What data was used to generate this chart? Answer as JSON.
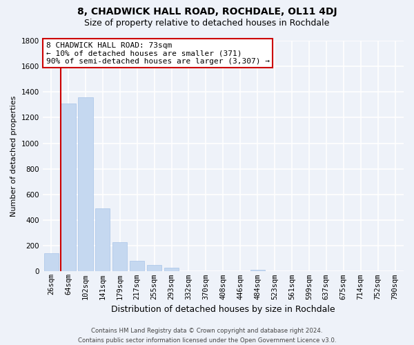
{
  "title": "8, CHADWICK HALL ROAD, ROCHDALE, OL11 4DJ",
  "subtitle": "Size of property relative to detached houses in Rochdale",
  "xlabel": "Distribution of detached houses by size in Rochdale",
  "ylabel": "Number of detached properties",
  "bar_labels": [
    "26sqm",
    "64sqm",
    "102sqm",
    "141sqm",
    "179sqm",
    "217sqm",
    "255sqm",
    "293sqm",
    "332sqm",
    "370sqm",
    "408sqm",
    "446sqm",
    "484sqm",
    "523sqm",
    "561sqm",
    "599sqm",
    "637sqm",
    "675sqm",
    "714sqm",
    "752sqm",
    "790sqm"
  ],
  "bar_values": [
    140,
    1310,
    1360,
    490,
    230,
    85,
    50,
    30,
    0,
    0,
    0,
    0,
    15,
    0,
    0,
    0,
    0,
    0,
    0,
    0,
    0
  ],
  "bar_color": "#c5d8f0",
  "bar_edge_color": "#a8c4e8",
  "vline_x_index": 1,
  "vline_color": "#cc0000",
  "annotation_line1": "8 CHADWICK HALL ROAD: 73sqm",
  "annotation_line2": "← 10% of detached houses are smaller (371)",
  "annotation_line3": "90% of semi-detached houses are larger (3,307) →",
  "annotation_box_color": "#ffffff",
  "annotation_box_edge": "#cc0000",
  "ylim": [
    0,
    1800
  ],
  "yticks": [
    0,
    200,
    400,
    600,
    800,
    1000,
    1200,
    1400,
    1600,
    1800
  ],
  "footer_line1": "Contains HM Land Registry data © Crown copyright and database right 2024.",
  "footer_line2": "Contains public sector information licensed under the Open Government Licence v3.0.",
  "bg_color": "#eef2f9",
  "grid_color": "#ffffff",
  "title_fontsize": 10,
  "subtitle_fontsize": 9,
  "ylabel_fontsize": 8,
  "xlabel_fontsize": 9,
  "tick_fontsize": 7.5,
  "annotation_fontsize": 8
}
